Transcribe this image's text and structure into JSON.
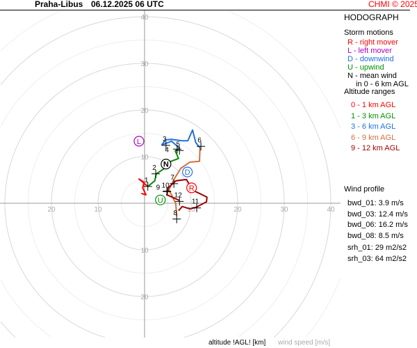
{
  "header": {
    "station": "Praha-Libus",
    "datetime": "06.12.2025 06 UTC",
    "credit": "CHMI © 2025"
  },
  "panel": {
    "title": "HODOGRAPH",
    "storm_title": "Storm motions",
    "storm_items": [
      {
        "text": "R - right mover",
        "color": "#ff0000"
      },
      {
        "text": "L - left mover",
        "color": "#b000c0"
      },
      {
        "text": "D - downwind",
        "color": "#2070e0"
      },
      {
        "text": "U - upwind",
        "color": "#009000"
      },
      {
        "text": "N - mean wind",
        "color": "#000000"
      },
      {
        "text": "in 0 - 6 km AGL",
        "color": "#000000"
      }
    ],
    "alt_title": "Altitude ranges",
    "alt_items": [
      {
        "text": "0 - 1 km AGL",
        "color": "#ff0000"
      },
      {
        "text": "1 - 3 km AGL",
        "color": "#009000"
      },
      {
        "text": "3 - 6 km AGL",
        "color": "#2070e0"
      },
      {
        "text": "6 - 9 km AGL",
        "color": "#d07040"
      },
      {
        "text": "9 - 12 km AGL",
        "color": "#a00000"
      }
    ],
    "wind_title": "Wind profile",
    "wind_items": [
      "bwd_01: 3.9 m/s",
      "bwd_03: 12.4 m/s",
      "bwd_06: 16.2 m/s",
      "bwd_08: 8.5 m/s"
    ],
    "srh_items": [
      "srh_01: 29 m2/s2",
      "srh_03: 64 m2/s2"
    ]
  },
  "footer": {
    "altitude_label": "altitude !AGL! [km]",
    "speed_label": "wind speed [m/s]"
  },
  "chart_data": {
    "type": "line",
    "title": "HODOGRAPH",
    "units": "m/s",
    "rings": [
      10,
      20,
      30,
      40
    ],
    "axis_labels": {
      "up": [
        "10",
        "20",
        "30",
        "40"
      ],
      "down": [
        "10",
        "20"
      ],
      "left": [
        "10",
        "20"
      ],
      "right": [
        "10",
        "20",
        "30",
        "40"
      ]
    },
    "series": [
      {
        "name": "0 - 1 km AGL",
        "color": "#ff0000",
        "points": [
          [
            0.7,
            3.6
          ],
          [
            -1.2,
            5.2
          ],
          [
            -0.1,
            4.5
          ],
          [
            -0.4,
            3.3
          ],
          [
            0.3,
            1.8
          ],
          [
            -0.7,
            2.1
          ]
        ]
      },
      {
        "name": "1 - 3 km AGL",
        "color": "#009000",
        "points": [
          [
            0.7,
            3.6
          ],
          [
            2.2,
            4.8
          ],
          [
            2.5,
            6.3
          ],
          [
            4.8,
            7.8
          ],
          [
            5.7,
            9.0
          ],
          [
            7.3,
            9.6
          ],
          [
            6.6,
            11.2
          ],
          [
            7.5,
            11.8
          ]
        ]
      },
      {
        "name": "3 - 6 km AGL",
        "color": "#2070e0",
        "points": [
          [
            7.5,
            11.8
          ],
          [
            5.8,
            13.3
          ],
          [
            3.7,
            12.5
          ],
          [
            4.5,
            13.6
          ],
          [
            5.8,
            13.7
          ],
          [
            8.1,
            13.4
          ],
          [
            9.3,
            13.4
          ],
          [
            10.3,
            15.7
          ],
          [
            11.0,
            13.0
          ],
          [
            11.9,
            11.9
          ]
        ]
      },
      {
        "name": "6 - 9 km AGL",
        "color": "#d07040",
        "points": [
          [
            11.9,
            11.9
          ],
          [
            11.8,
            9.0
          ],
          [
            9.7,
            8.8
          ],
          [
            7.8,
            7.5
          ],
          [
            6.3,
            5.1
          ],
          [
            5.2,
            2.8
          ],
          [
            5.8,
            1.8
          ],
          [
            6.7,
            -0.1
          ],
          [
            6.9,
            -2.7
          ]
        ]
      },
      {
        "name": "9 - 12 km AGL",
        "color": "#a00000",
        "points": [
          [
            7.3,
            -1.6
          ],
          [
            8.1,
            -0.7
          ],
          [
            9.7,
            -1.2
          ],
          [
            11.0,
            -0.9
          ],
          [
            13.3,
            0.3
          ],
          [
            13.4,
            1.3
          ],
          [
            11.8,
            2.1
          ],
          [
            10.3,
            2.8
          ],
          [
            9.0,
            5.1
          ],
          [
            6.7,
            4.8
          ],
          [
            5.1,
            3.3
          ],
          [
            4.8,
            1.8
          ],
          [
            7.5,
            0.6
          ]
        ]
      }
    ],
    "height_markers": [
      {
        "label": "1",
        "u": 0.7,
        "v": 3.6
      },
      {
        "label": "2",
        "u": 2.4,
        "v": 6.3
      },
      {
        "label": "3",
        "u": 4.6,
        "v": 12.4
      },
      {
        "label": "4",
        "u": 7.0,
        "v": 11.6
      },
      {
        "label": "5",
        "u": 7.5,
        "v": 11.3
      },
      {
        "label": "6",
        "u": 12.1,
        "v": 12.2
      },
      {
        "label": "7",
        "u": 6.3,
        "v": 4.2
      },
      {
        "label": "8",
        "u": 6.9,
        "v": -3.4
      },
      {
        "label": "9",
        "u": 4.8,
        "v": 2.6
      },
      {
        "label": "10",
        "u": 4.8,
        "v": 2.5
      },
      {
        "label": "11",
        "u": 11.2,
        "v": -1.0
      },
      {
        "label": "12",
        "u": 7.5,
        "v": 0.4
      }
    ],
    "storm_motions": [
      {
        "label": "L",
        "u": -1.2,
        "v": 13.3,
        "color": "#b000c0"
      },
      {
        "label": "N",
        "u": 4.6,
        "v": 8.4,
        "color": "#000000"
      },
      {
        "label": "D",
        "u": 9.2,
        "v": 6.7,
        "color": "#2070e0"
      },
      {
        "label": "R",
        "u": 10.1,
        "v": 3.3,
        "color": "#ff0000"
      },
      {
        "label": "U",
        "u": 3.4,
        "v": 0.7,
        "color": "#009000"
      }
    ]
  }
}
